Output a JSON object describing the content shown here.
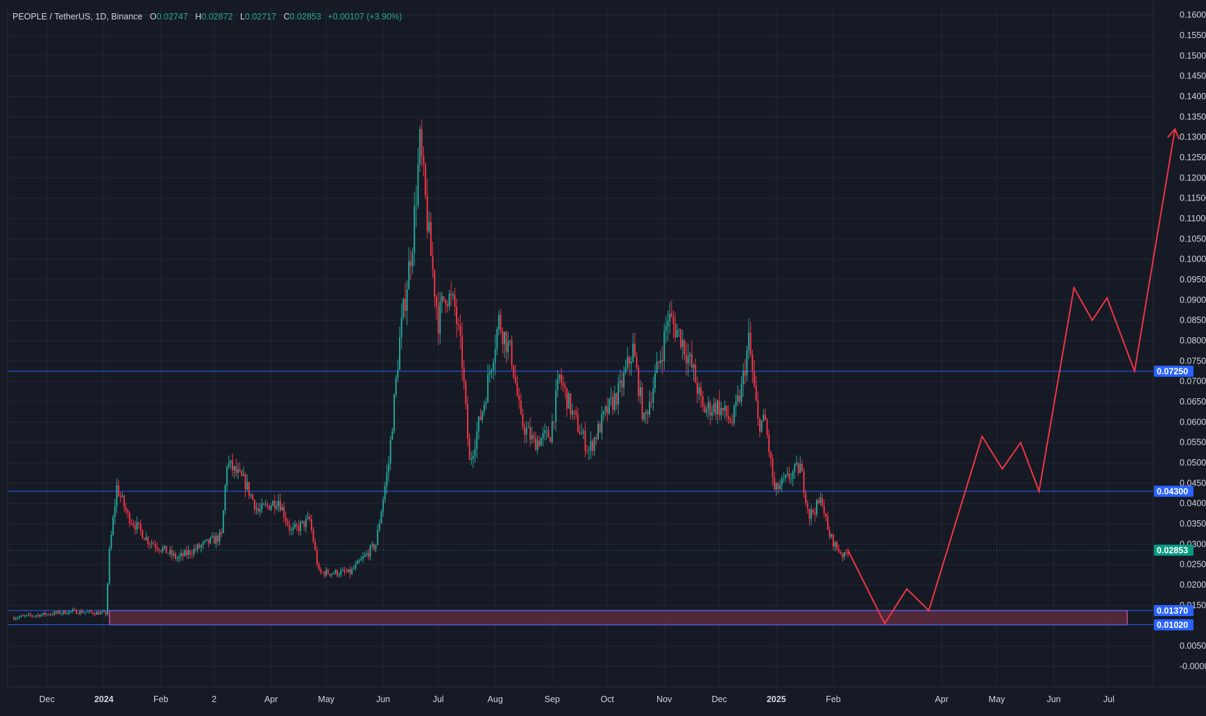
{
  "header": {
    "symbol": "PEOPLE / TetherUS, 1D, Binance",
    "open_label": "O",
    "open_value": "0.02747",
    "high_label": "H",
    "high_value": "0.02872",
    "low_label": "L",
    "low_value": "0.02717",
    "close_label": "C",
    "close_value": "0.02853",
    "change": "+0.00107 (+3.90%)"
  },
  "colors": {
    "background": "#161a25",
    "grid": "#232736",
    "up": "#26a69a",
    "down": "#f23645",
    "hline": "#2962ff",
    "zone_fill": "#5a2b3d",
    "zone_border": "#c24fa4",
    "projection": "#f23645",
    "last_price": "#089981"
  },
  "chart_data": {
    "type": "candlestick",
    "title": "PEOPLE / TetherUS, 1D, Binance",
    "y_axis": {
      "ylim": [
        -0.003,
        0.162
      ],
      "tick_labels": [
        "0.16000",
        "0.15500",
        "0.15000",
        "0.14500",
        "0.14000",
        "0.13500",
        "0.13000",
        "0.12500",
        "0.12000",
        "0.11500",
        "0.11000",
        "0.10500",
        "0.10000",
        "0.09500",
        "0.09000",
        "0.08500",
        "0.08000",
        "0.07500",
        "0.07000",
        "0.06500",
        "0.06000",
        "0.05500",
        "0.05000",
        "0.04500",
        "0.04000",
        "0.03500",
        "0.03000",
        "0.02500",
        "0.02000",
        "0.01500",
        "0.00500",
        "-0.0000"
      ]
    },
    "x_axis": {
      "tick_labels": [
        "Dec",
        "2024",
        "Feb",
        "2",
        "Apr",
        "May",
        "Jun",
        "Jul",
        "Aug",
        "Sep",
        "Oct",
        "Nov",
        "Dec",
        "2025",
        "Feb",
        "Apr",
        "May",
        "Jun",
        "Jul"
      ],
      "tick_dates": [
        "2023-12-01",
        "2024-01-01",
        "2024-02-01",
        "2024-03-01",
        "2024-04-01",
        "2024-05-01",
        "2024-06-01",
        "2024-07-01",
        "2024-08-01",
        "2024-09-01",
        "2024-10-01",
        "2024-11-01",
        "2024-12-01",
        "2025-01-01",
        "2025-02-01",
        "2025-04-01",
        "2025-05-01",
        "2025-06-01",
        "2025-07-01"
      ]
    },
    "price_path": [
      [
        "2023-11-13",
        0.012
      ],
      [
        "2023-12-15",
        0.0135
      ],
      [
        "2024-01-02",
        0.013
      ],
      [
        "2024-01-04",
        0.028
      ],
      [
        "2024-01-08",
        0.044
      ],
      [
        "2024-01-14",
        0.037
      ],
      [
        "2024-01-25",
        0.031
      ],
      [
        "2024-02-10",
        0.0265
      ],
      [
        "2024-02-25",
        0.03
      ],
      [
        "2024-03-05",
        0.032
      ],
      [
        "2024-03-08",
        0.05
      ],
      [
        "2024-03-18",
        0.045
      ],
      [
        "2024-03-25",
        0.038
      ],
      [
        "2024-04-05",
        0.041
      ],
      [
        "2024-04-12",
        0.033
      ],
      [
        "2024-04-22",
        0.036
      ],
      [
        "2024-04-27",
        0.023
      ],
      [
        "2024-05-14",
        0.023
      ],
      [
        "2024-05-28",
        0.03
      ],
      [
        "2024-06-04",
        0.05
      ],
      [
        "2024-06-10",
        0.08
      ],
      [
        "2024-06-17",
        0.105
      ],
      [
        "2024-06-21",
        0.128
      ],
      [
        "2024-06-26",
        0.105
      ],
      [
        "2024-07-01",
        0.085
      ],
      [
        "2024-07-05",
        0.092
      ],
      [
        "2024-07-10",
        0.088
      ],
      [
        "2024-07-14",
        0.075
      ],
      [
        "2024-07-18",
        0.05
      ],
      [
        "2024-07-26",
        0.065
      ],
      [
        "2024-08-03",
        0.085
      ],
      [
        "2024-08-10",
        0.076
      ],
      [
        "2024-08-15",
        0.06
      ],
      [
        "2024-08-22",
        0.055
      ],
      [
        "2024-08-31",
        0.057
      ],
      [
        "2024-09-05",
        0.071
      ],
      [
        "2024-09-12",
        0.062
      ],
      [
        "2024-09-21",
        0.053
      ],
      [
        "2024-09-30",
        0.062
      ],
      [
        "2024-10-08",
        0.068
      ],
      [
        "2024-10-15",
        0.078
      ],
      [
        "2024-10-21",
        0.06
      ],
      [
        "2024-10-31",
        0.078
      ],
      [
        "2024-11-03",
        0.086
      ],
      [
        "2024-11-10",
        0.081
      ],
      [
        "2024-11-17",
        0.072
      ],
      [
        "2024-11-22",
        0.063
      ],
      [
        "2024-11-30",
        0.064
      ],
      [
        "2024-12-08",
        0.06
      ],
      [
        "2024-12-13",
        0.068
      ],
      [
        "2024-12-17",
        0.08
      ],
      [
        "2024-12-22",
        0.06
      ],
      [
        "2024-12-26",
        0.06
      ],
      [
        "2024-12-31",
        0.043
      ],
      [
        "2025-01-09",
        0.047
      ],
      [
        "2025-01-14",
        0.049
      ],
      [
        "2025-01-19",
        0.037
      ],
      [
        "2025-01-26",
        0.041
      ],
      [
        "2025-01-29",
        0.033
      ],
      [
        "2025-02-03",
        0.029
      ],
      [
        "2025-02-07",
        0.027
      ],
      [
        "2025-02-09",
        0.0285
      ]
    ],
    "horizontal_lines": [
      {
        "label": "0.07250",
        "value": 0.0725
      },
      {
        "label": "0.04300",
        "value": 0.043
      },
      {
        "label": "0.01370",
        "value": 0.0137
      },
      {
        "label": "0.01020",
        "value": 0.0102
      }
    ],
    "last_price": {
      "label": "0.02853",
      "value": 0.02853
    },
    "support_zone": {
      "from": "2024-01-04",
      "to": "2025-07-11",
      "low": 0.0102,
      "high": 0.0137
    },
    "projection": [
      [
        "2025-02-09",
        0.0285
      ],
      [
        "2025-03-01",
        0.0105
      ],
      [
        "2025-03-13",
        0.019
      ],
      [
        "2025-03-25",
        0.0137
      ],
      [
        "2025-04-23",
        0.0565
      ],
      [
        "2025-05-04",
        0.0485
      ],
      [
        "2025-05-14",
        0.055
      ],
      [
        "2025-05-24",
        0.043
      ],
      [
        "2025-06-12",
        0.093
      ],
      [
        "2025-06-22",
        0.085
      ],
      [
        "2025-06-30",
        0.0905
      ],
      [
        "2025-07-15",
        0.0725
      ],
      [
        "2025-08-06",
        0.132
      ]
    ]
  }
}
